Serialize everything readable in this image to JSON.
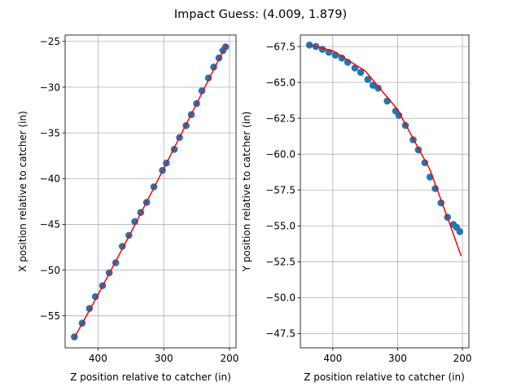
{
  "title": "Impact Guess: (4.009, 1.879)",
  "chart_data": [
    {
      "type": "scatter",
      "xlabel": "Z position relative to catcher (in)",
      "ylabel": "X position relative to catcher (in)",
      "xlim": [
        450,
        190
      ],
      "ylim": [
        -58.5,
        -24.3
      ],
      "xticks": [
        400,
        300,
        200
      ],
      "yticks": [
        -55,
        -50,
        -45,
        -40,
        -35,
        -30,
        -25
      ],
      "grid": true,
      "series": [
        {
          "kind": "points",
          "color": "#1f77b4",
          "points": [
            [
              436,
              -57.3
            ],
            [
              424,
              -55.8
            ],
            [
              413,
              -54.2
            ],
            [
              404,
              -52.9
            ],
            [
              393,
              -51.7
            ],
            [
              383,
              -50.3
            ],
            [
              373,
              -49.2
            ],
            [
              363,
              -47.4
            ],
            [
              353,
              -46.2
            ],
            [
              344,
              -44.7
            ],
            [
              335,
              -43.7
            ],
            [
              326,
              -42.6
            ],
            [
              315,
              -40.9
            ],
            [
              302,
              -39.1
            ],
            [
              296,
              -38.3
            ],
            [
              284,
              -36.8
            ],
            [
              276,
              -35.5
            ],
            [
              266,
              -34.2
            ],
            [
              258,
              -33.0
            ],
            [
              250,
              -31.8
            ],
            [
              242,
              -30.4
            ],
            [
              232,
              -29.0
            ],
            [
              224,
              -27.8
            ],
            [
              216,
              -26.8
            ],
            [
              210,
              -26.0
            ],
            [
              206,
              -25.6
            ]
          ]
        },
        {
          "kind": "fit-line",
          "color": "#ff0000",
          "points": [
            [
              436,
              -57.4
            ],
            [
              400,
              -52.7
            ],
            [
              350,
              -45.9
            ],
            [
              300,
              -38.9
            ],
            [
              250,
              -31.8
            ],
            [
              220,
              -27.5
            ],
            [
              204,
              -25.3
            ]
          ]
        }
      ]
    },
    {
      "type": "scatter",
      "xlabel": "Z position relative to catcher (in)",
      "ylabel": "Y position relative to catcher (in)",
      "xlim": [
        450,
        190
      ],
      "ylim": [
        -68.3,
        -46.5
      ],
      "yinverted": true,
      "xticks": [
        400,
        300,
        200
      ],
      "yticks": [
        -67.5,
        -65.0,
        -62.5,
        -60.0,
        -57.5,
        -55.0,
        -52.5,
        -50.0,
        -47.5
      ],
      "ytick_format": "fixed1",
      "grid": true,
      "series": [
        {
          "kind": "points",
          "color": "#1f77b4",
          "points": [
            [
              436,
              -67.6
            ],
            [
              426,
              -67.5
            ],
            [
              416,
              -67.3
            ],
            [
              406,
              -67.1
            ],
            [
              396,
              -66.9
            ],
            [
              386,
              -66.7
            ],
            [
              377,
              -66.4
            ],
            [
              366,
              -66.0
            ],
            [
              357,
              -65.7
            ],
            [
              346,
              -65.2
            ],
            [
              338,
              -64.8
            ],
            [
              330,
              -64.6
            ],
            [
              316,
              -63.7
            ],
            [
              303,
              -63.0
            ],
            [
              298,
              -62.7
            ],
            [
              288,
              -62.0
            ],
            [
              276,
              -61.0
            ],
            [
              268,
              -60.3
            ],
            [
              258,
              -59.4
            ],
            [
              250,
              -58.4
            ],
            [
              242,
              -57.6
            ],
            [
              233,
              -56.6
            ],
            [
              223,
              -55.6
            ],
            [
              214,
              -55.1
            ],
            [
              209,
              -54.9
            ],
            [
              204,
              -54.6
            ]
          ]
        },
        {
          "kind": "fit-line",
          "color": "#ff0000",
          "points": [
            [
              436,
              -67.6
            ],
            [
              400,
              -67.2
            ],
            [
              350,
              -65.8
            ],
            [
              300,
              -63.1
            ],
            [
              250,
              -58.9
            ],
            [
              220,
              -55.2
            ],
            [
              202,
              -52.9
            ]
          ]
        }
      ]
    }
  ]
}
